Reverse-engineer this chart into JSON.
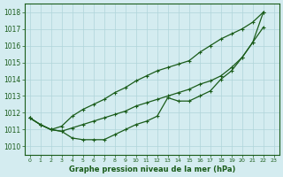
{
  "bg_color": "#d4ecf0",
  "grid_color": "#afd4da",
  "line_color": "#1a5c1a",
  "xlabel": "Graphe pression niveau de la mer (hPa)",
  "ylim": [
    1009.5,
    1018.5
  ],
  "xlim": [
    -0.5,
    23.5
  ],
  "yticks": [
    1010,
    1011,
    1012,
    1013,
    1014,
    1015,
    1016,
    1017,
    1018
  ],
  "xticks": [
    0,
    1,
    2,
    3,
    4,
    5,
    6,
    7,
    8,
    9,
    10,
    11,
    12,
    13,
    14,
    15,
    16,
    17,
    18,
    19,
    20,
    21,
    22,
    23
  ],
  "curve1_x": [
    0,
    1,
    2,
    3,
    4,
    5,
    6,
    7,
    8,
    9,
    10,
    11,
    12,
    13,
    14,
    15,
    16,
    17,
    18,
    19,
    20,
    21,
    22
  ],
  "curve1_y": [
    1011.7,
    1011.3,
    1011.0,
    1011.2,
    1011.8,
    1012.2,
    1012.5,
    1012.8,
    1013.2,
    1013.5,
    1013.9,
    1014.2,
    1014.5,
    1014.7,
    1014.9,
    1015.1,
    1015.6,
    1016.0,
    1016.4,
    1016.7,
    1017.0,
    1017.4,
    1018.0
  ],
  "curve2_x": [
    0,
    1,
    2,
    3,
    4,
    5,
    6,
    7,
    8,
    9,
    10,
    11,
    12,
    13,
    14,
    15,
    16,
    17,
    18,
    19,
    20,
    21,
    22
  ],
  "curve2_y": [
    1011.7,
    1011.3,
    1011.0,
    1010.9,
    1011.1,
    1011.3,
    1011.5,
    1011.7,
    1011.9,
    1012.1,
    1012.4,
    1012.6,
    1012.8,
    1013.0,
    1013.2,
    1013.4,
    1013.7,
    1013.9,
    1014.2,
    1014.7,
    1015.3,
    1016.2,
    1017.1
  ],
  "curve3_x": [
    0,
    1,
    2,
    3,
    4,
    5,
    6,
    7,
    8,
    9,
    10,
    11,
    12,
    13,
    14,
    15,
    16,
    17,
    18,
    19,
    20,
    21,
    22
  ],
  "curve3_y": [
    1011.7,
    1011.3,
    1011.0,
    1010.9,
    1010.5,
    1010.4,
    1010.4,
    1010.4,
    1010.7,
    1011.0,
    1011.3,
    1011.5,
    1011.8,
    1012.9,
    1012.7,
    1012.7,
    1013.0,
    1013.3,
    1014.0,
    1014.5,
    1015.3,
    1016.2,
    1018.0
  ]
}
